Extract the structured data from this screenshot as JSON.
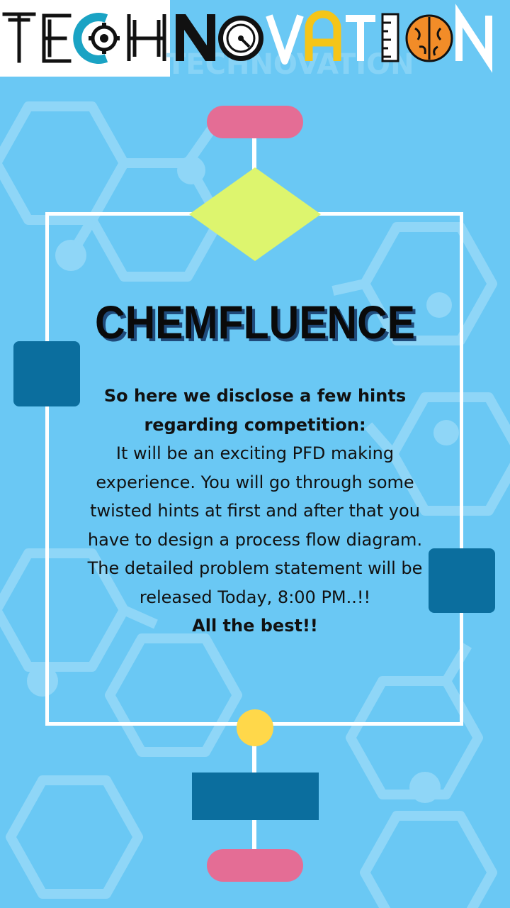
{
  "header": {
    "logo_text": "TECHNOVATION"
  },
  "title": "CHEMFLUENCE",
  "content": {
    "intro_bold": "So here we disclose a few hints regarding competition:",
    "lines": [
      "It will be an exciting PFD making experience. You will go through some twisted hints at first and after that you have to design a process flow diagram.",
      "The detailed problem statement will be released Today, 8:00 PM..!!"
    ],
    "closing_bold": "All the best!!"
  },
  "colors": {
    "background": "#6ac8f4",
    "pill": "#e46d95",
    "diamond": "#ddf56e",
    "square": "#0b6e9e",
    "circle": "#ffd84a",
    "logo_yellow": "#f5c518",
    "logo_teal": "#1aa3c4",
    "logo_orange": "#f28c28"
  },
  "icons": [
    "gear-icon",
    "dial-icon",
    "ruler-icon",
    "brain-icon"
  ]
}
